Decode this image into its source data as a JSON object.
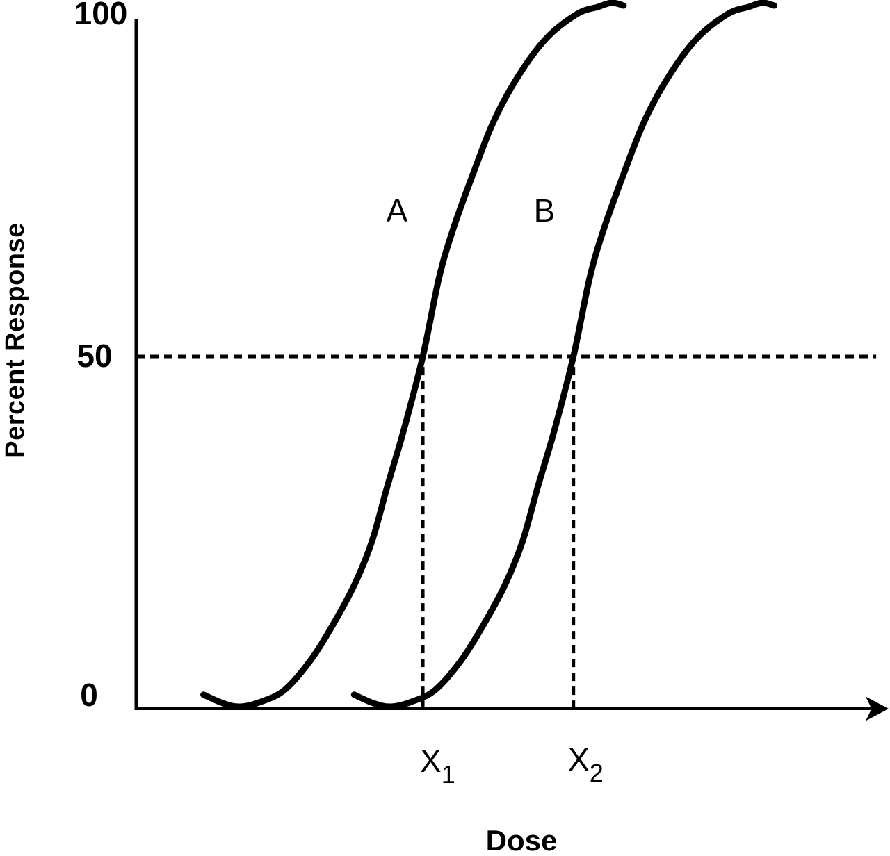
{
  "colors": {
    "ink": "#000000",
    "background": "#ffffff"
  },
  "figure": {
    "ylabel": "Percent Response",
    "xlabel": "Dose",
    "ytick_100": "100",
    "ytick_50": "50",
    "ytick_0": "0",
    "curve_a_label": "A",
    "curve_b_label": "B",
    "x1_base": "X",
    "x1_sub": "1",
    "x2_base": "X",
    "x2_sub": "2"
  },
  "chart_data": {
    "type": "line",
    "title": "",
    "xlabel": "Dose",
    "ylabel": "Percent Response",
    "ylim": [
      0,
      100
    ],
    "yticks": [
      0,
      50,
      100
    ],
    "xlim": [
      0,
      100
    ],
    "x_units": "arbitrary dose units; x-axis unlabeled except arrow indicating increasing dose",
    "grid": false,
    "legend_position": "inline labels A and B above each curve at ~70% response",
    "guides": {
      "horizontal_dashed_at_pct": 50,
      "horizontal_dashed_dose_range": [
        0,
        100.2
      ],
      "vertical_dashed": [
        {
          "label": "X1",
          "dose": 38.8,
          "pct_from": 0,
          "pct_to": 48.5
        },
        {
          "label": "X2",
          "dose": 59.2,
          "pct_from": 0,
          "pct_to": 48.5
        }
      ]
    },
    "series": [
      {
        "name": "A",
        "ed50_label": "X1",
        "ed50_dose": 38.8,
        "points": [
          [
            9.1,
            1.8
          ],
          [
            11.7,
            0.6
          ],
          [
            14.0,
            0.1
          ],
          [
            16.9,
            0.8
          ],
          [
            20.1,
            2.5
          ],
          [
            23.6,
            6.7
          ],
          [
            26.7,
            11.9
          ],
          [
            29.6,
            17.6
          ],
          [
            31.9,
            23.6
          ],
          [
            34.0,
            31.5
          ],
          [
            36.2,
            39.4
          ],
          [
            38.8,
            50.0
          ],
          [
            41.0,
            61.2
          ],
          [
            42.9,
            68.1
          ],
          [
            45.6,
            76.0
          ],
          [
            48.4,
            83.5
          ],
          [
            51.7,
            89.9
          ],
          [
            55.5,
            95.3
          ],
          [
            59.7,
            98.8
          ],
          [
            62.5,
            99.8
          ],
          [
            64.4,
            100.4
          ],
          [
            66.0,
            100.0
          ]
        ]
      },
      {
        "name": "B",
        "ed50_label": "X2",
        "ed50_dose": 59.2,
        "points": [
          [
            29.5,
            1.8
          ],
          [
            32.1,
            0.6
          ],
          [
            34.4,
            0.1
          ],
          [
            37.3,
            0.8
          ],
          [
            40.5,
            2.5
          ],
          [
            44.0,
            6.7
          ],
          [
            47.1,
            11.9
          ],
          [
            50.0,
            17.6
          ],
          [
            52.3,
            23.6
          ],
          [
            54.4,
            31.5
          ],
          [
            56.6,
            39.4
          ],
          [
            59.2,
            50.0
          ],
          [
            61.4,
            61.2
          ],
          [
            63.3,
            68.1
          ],
          [
            66.0,
            76.0
          ],
          [
            68.8,
            83.5
          ],
          [
            72.1,
            89.9
          ],
          [
            75.9,
            95.3
          ],
          [
            80.1,
            98.8
          ],
          [
            82.9,
            99.8
          ],
          [
            84.8,
            100.4
          ],
          [
            86.4,
            100.0
          ]
        ]
      }
    ]
  }
}
